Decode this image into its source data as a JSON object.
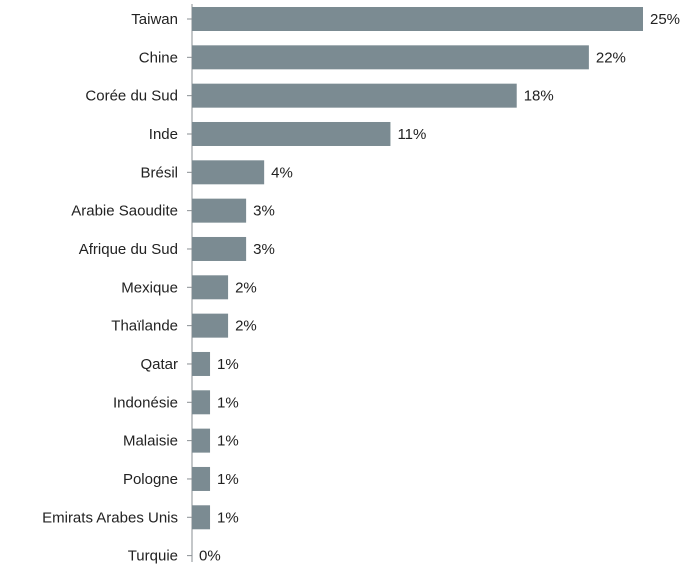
{
  "chart_data": {
    "type": "bar",
    "orientation": "horizontal",
    "categories": [
      "Taiwan",
      "Chine",
      "Corée du Sud",
      "Inde",
      "Brésil",
      "Arabie Saoudite",
      "Afrique du Sud",
      "Mexique",
      "Thaïlande",
      "Qatar",
      "Indonésie",
      "Malaisie",
      "Pologne",
      "Emirats Arabes Unis",
      "Turquie"
    ],
    "values": [
      25,
      22,
      18,
      11,
      4,
      3,
      3,
      2,
      2,
      1,
      1,
      1,
      1,
      1,
      0
    ],
    "value_labels": [
      "25%",
      "22%",
      "18%",
      "11%",
      "4%",
      "3%",
      "3%",
      "2%",
      "2%",
      "1%",
      "1%",
      "1%",
      "1%",
      "1%",
      "0%"
    ],
    "value_unit": "%",
    "title": "",
    "xlabel": "",
    "ylabel": "",
    "grid": false,
    "bar_color": "#7b8b92"
  }
}
